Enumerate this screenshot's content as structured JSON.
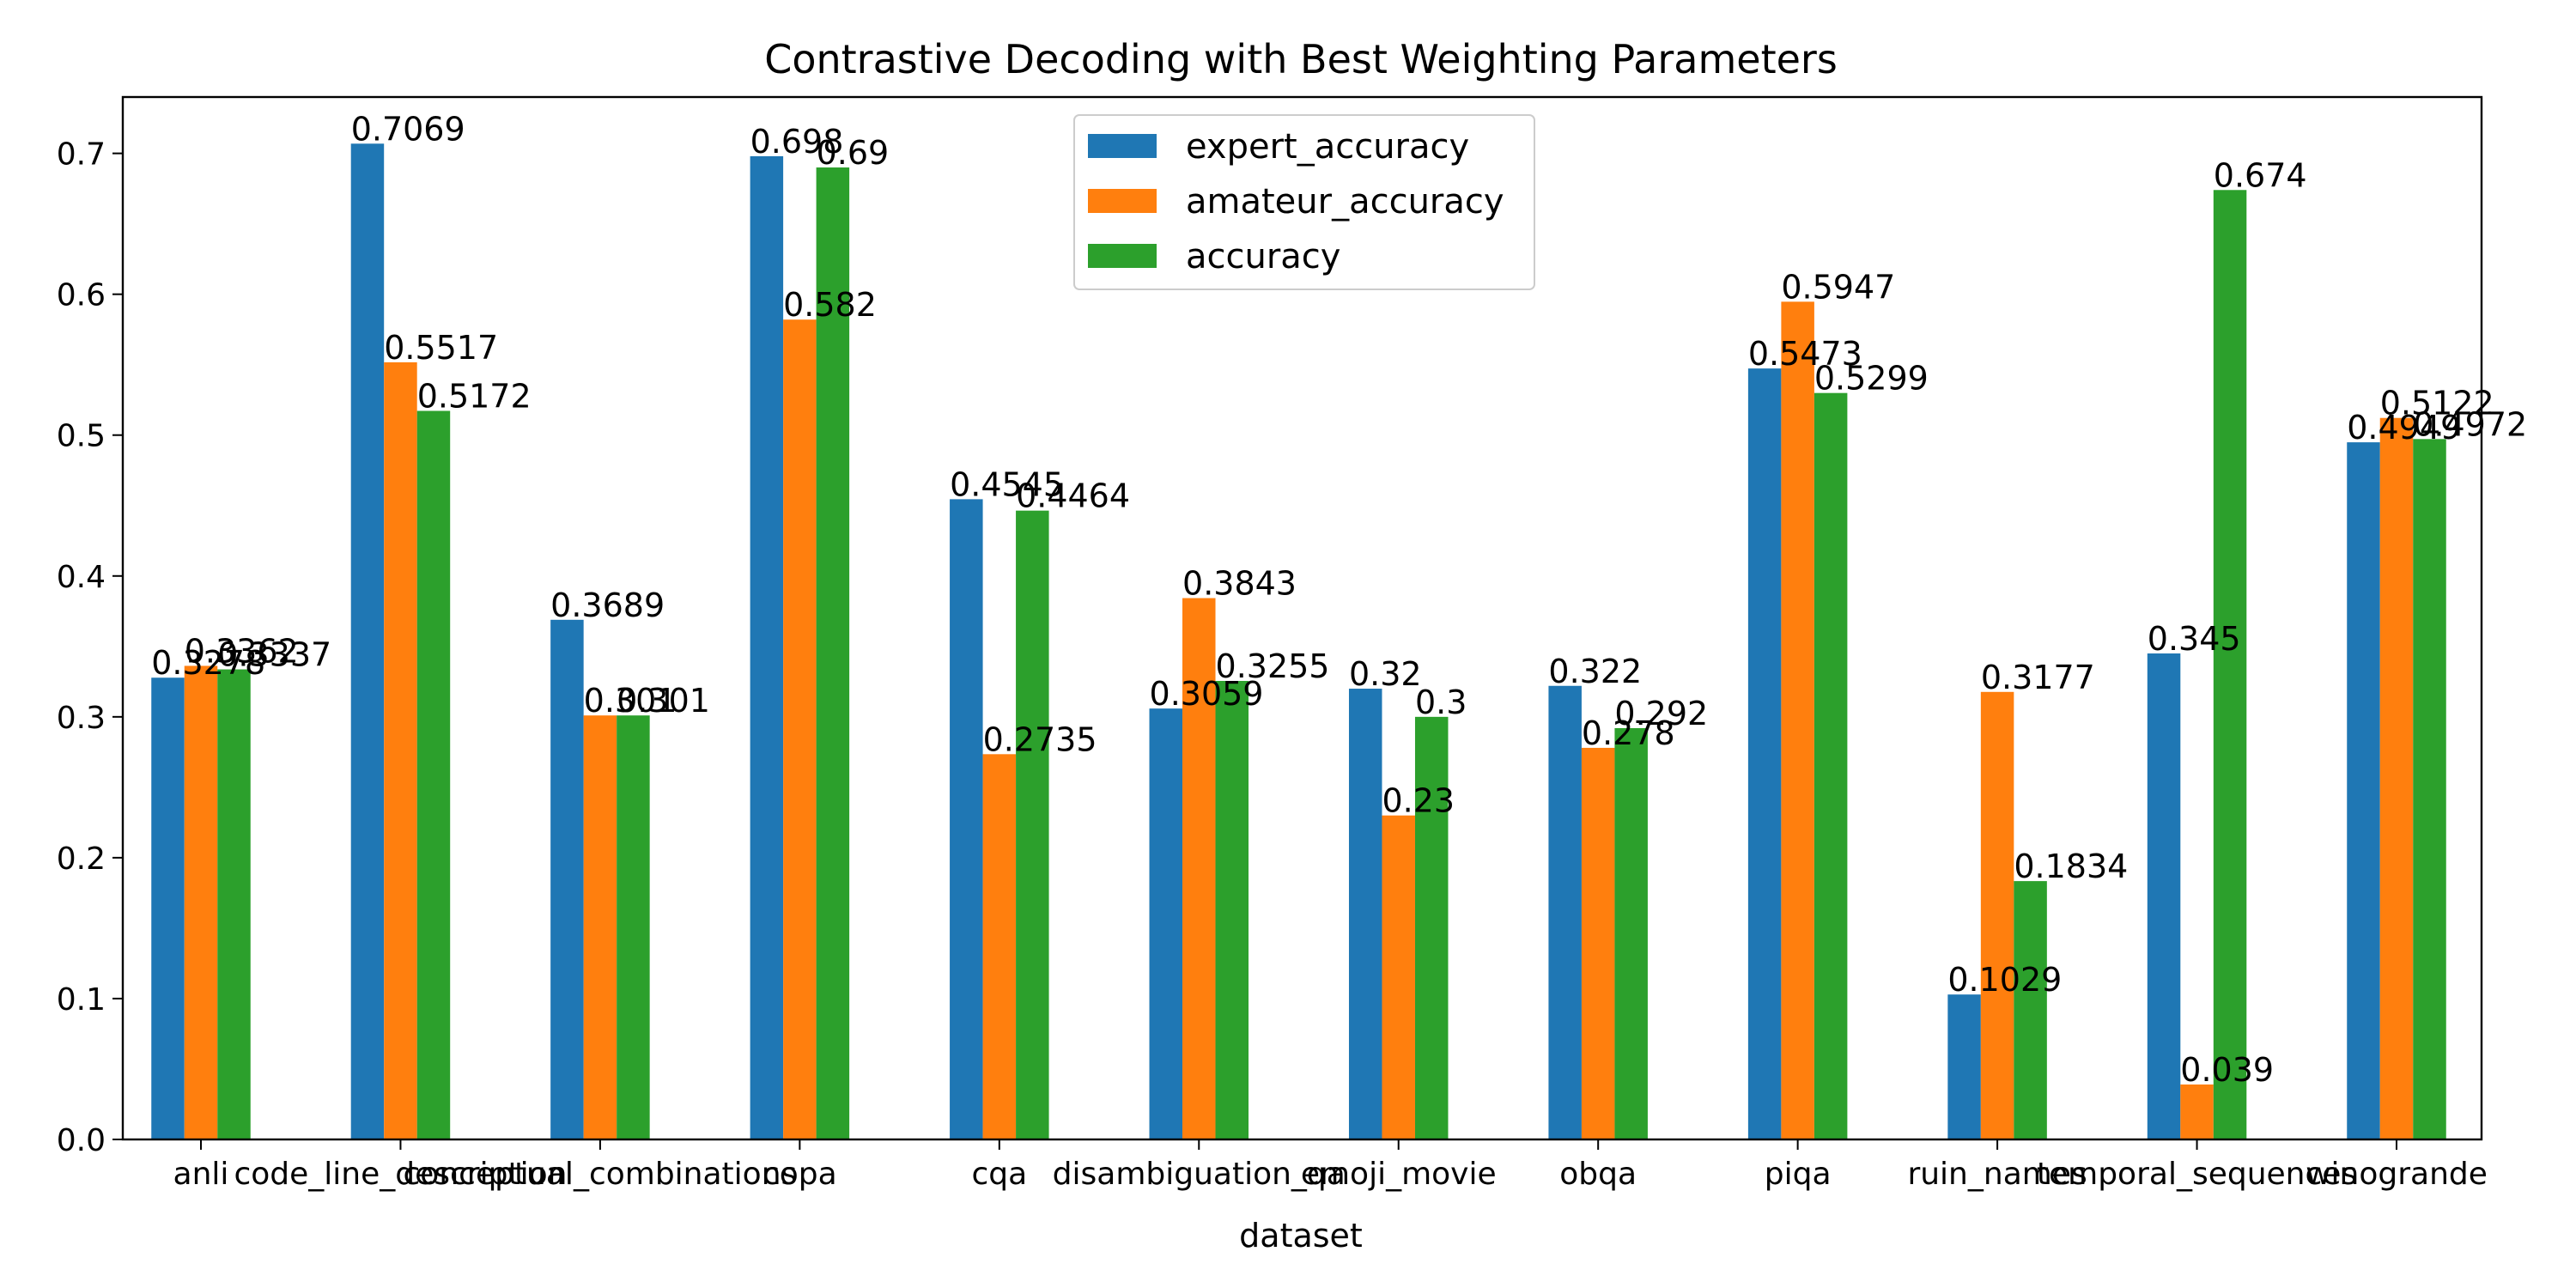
{
  "chart_data": {
    "type": "bar",
    "title": "Contrastive Decoding with Best Weighting Parameters",
    "xlabel": "dataset",
    "ylabel": "",
    "ylim": [
      0,
      0.74
    ],
    "yticks": [
      "0.0",
      "0.1",
      "0.2",
      "0.3",
      "0.4",
      "0.5",
      "0.6",
      "0.7"
    ],
    "grid": false,
    "legend_position": "top-center",
    "categories": [
      "anli",
      "code_line_description",
      "conceptual_combinations",
      "copa",
      "cqa",
      "disambiguation_qa",
      "emoji_movie",
      "obqa",
      "piqa",
      "ruin_names",
      "temporal_sequences",
      "winogrande"
    ],
    "series": [
      {
        "name": "expert_accuracy",
        "color": "#1f77b4",
        "values": [
          0.3278,
          0.7069,
          0.3689,
          0.698,
          0.4545,
          0.3059,
          0.32,
          0.322,
          0.5473,
          0.1029,
          0.345,
          0.4949
        ],
        "labels": [
          "0.3278",
          "0.7069",
          "0.3689",
          "0.698",
          "0.4545",
          "0.3059",
          "0.32",
          "0.322",
          "0.5473",
          "0.1029",
          "0.345",
          "0.4949"
        ]
      },
      {
        "name": "amateur_accuracy",
        "color": "#ff7f0e",
        "values": [
          0.3362,
          0.5517,
          0.301,
          0.582,
          0.2735,
          0.3843,
          0.23,
          0.278,
          0.5947,
          0.3177,
          0.039,
          0.5122
        ],
        "labels": [
          "0.3362",
          "0.5517",
          "0.301",
          "0.582",
          "0.2735",
          "0.3843",
          "0.23",
          "0.278",
          "0.5947",
          "0.3177",
          "0.039",
          "0.5122"
        ]
      },
      {
        "name": "accuracy",
        "color": "#2ca02c",
        "values": [
          0.3337,
          0.5172,
          0.301,
          0.69,
          0.4464,
          0.3255,
          0.3,
          0.292,
          0.5299,
          0.1834,
          0.674,
          0.4972
        ],
        "labels": [
          "0.3337",
          "0.5172",
          "0.301",
          "0.69",
          "0.4464",
          "0.3255",
          "0.3",
          "0.292",
          "0.5299",
          "0.1834",
          "0.674",
          "0.4972"
        ]
      }
    ]
  }
}
